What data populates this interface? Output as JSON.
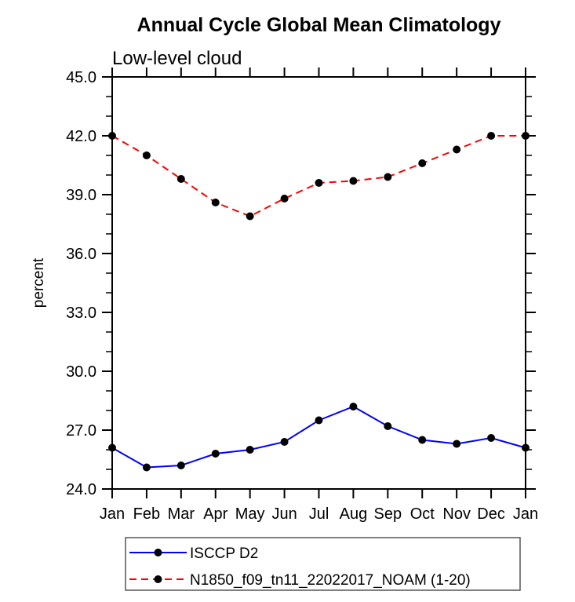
{
  "page": {
    "background_color": "#ffffff",
    "text_color": "#000000"
  },
  "chart_data": {
    "type": "line",
    "title": "Annual Cycle Global Mean Climatology",
    "subtitle": "Low-level cloud",
    "ylabel": "percent",
    "xlabel": "",
    "categories": [
      "Jan",
      "Feb",
      "Mar",
      "Apr",
      "May",
      "Jun",
      "Jul",
      "Aug",
      "Sep",
      "Oct",
      "Nov",
      "Dec",
      "Jan"
    ],
    "ylim": [
      24.0,
      45.0
    ],
    "ytick_major": [
      24.0,
      27.0,
      30.0,
      33.0,
      36.0,
      39.0,
      42.0,
      45.0
    ],
    "ytick_major_labels": [
      "24.0",
      "27.0",
      "30.0",
      "33.0",
      "36.0",
      "39.0",
      "42.0",
      "45.0"
    ],
    "ytick_minor_step": 1.0,
    "grid": false,
    "axis_color": "#000000",
    "marker_color": "#000000",
    "legend_position": "below-plot-left",
    "legend_border_color": "#555555",
    "series": [
      {
        "name": "ISCCP D2",
        "line_color": "#0000ff",
        "line_style": "solid",
        "marker": "filled-circle",
        "values": [
          26.1,
          25.1,
          25.2,
          25.8,
          26.0,
          26.4,
          27.5,
          28.2,
          27.2,
          26.5,
          26.3,
          26.6,
          26.1
        ]
      },
      {
        "name": "N1850_f09_tn11_22022017_NOAM (1-20)",
        "line_color": "#ff0000",
        "line_style": "dashed",
        "marker": "filled-circle",
        "values": [
          42.0,
          41.0,
          39.8,
          38.6,
          37.9,
          38.8,
          39.6,
          39.7,
          39.9,
          40.6,
          41.3,
          42.0,
          42.0
        ]
      }
    ]
  }
}
